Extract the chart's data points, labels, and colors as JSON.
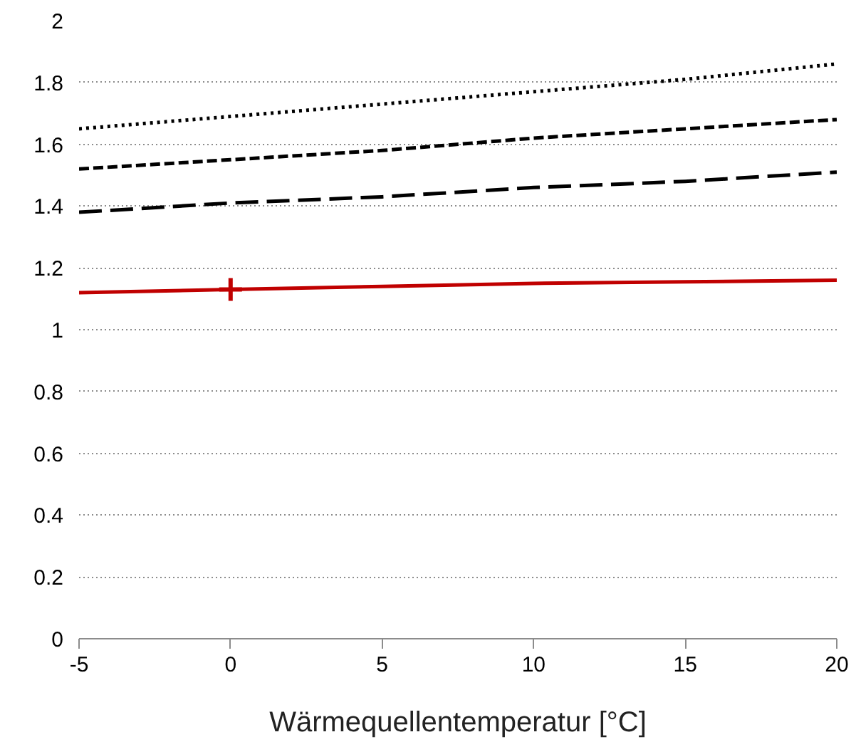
{
  "chart_data": {
    "type": "line",
    "xlabel": "Wärmequellentemperatur [°C]",
    "xlim": [
      -5,
      20
    ],
    "xticks": [
      -5,
      0,
      5,
      10,
      15,
      20
    ],
    "ylim": [
      0,
      2
    ],
    "yticks": [
      0,
      0.2,
      0.4,
      0.6,
      0.8,
      1,
      1.2,
      1.4,
      1.6,
      1.8,
      2
    ],
    "grid": "y",
    "marker": "none",
    "series": [
      {
        "color": "#000000",
        "line_style": "dotted",
        "x": [
          -5,
          0,
          5,
          10,
          15,
          20
        ],
        "values": [
          1.65,
          1.69,
          1.73,
          1.77,
          1.81,
          1.86
        ]
      },
      {
        "color": "#000000",
        "line_style": "dashed",
        "x": [
          -5,
          0,
          5,
          10,
          15,
          20
        ],
        "values": [
          1.52,
          1.55,
          1.58,
          1.62,
          1.65,
          1.68
        ]
      },
      {
        "color": "#000000",
        "line_style": "dashed",
        "x": [
          -5,
          0,
          5,
          10,
          15,
          20
        ],
        "values": [
          1.38,
          1.41,
          1.43,
          1.46,
          1.48,
          1.51
        ]
      },
      {
        "color": "#c00000",
        "line_style": "solid",
        "x": [
          -5,
          0,
          5,
          10,
          15,
          20
        ],
        "values": [
          1.12,
          1.13,
          1.14,
          1.15,
          1.155,
          1.16
        ]
      },
      {
        "type": "scatter",
        "color": "#c00000",
        "marker": "cross",
        "x": [
          0
        ],
        "values": [
          1.13
        ]
      }
    ]
  }
}
